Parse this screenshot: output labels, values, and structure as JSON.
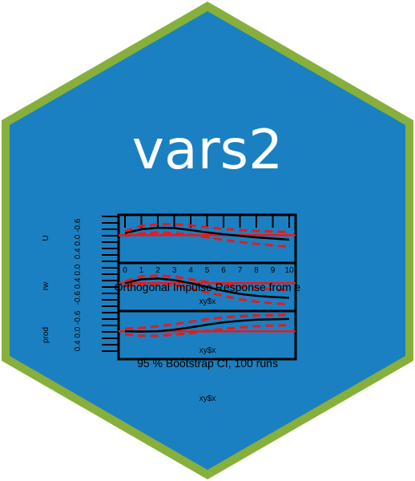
{
  "logo": {
    "title": "vars2",
    "border_color": "#86b03b",
    "fill_color": "#1a80c2",
    "title_color": "#ffffff"
  },
  "plot": {
    "main_title": "Orthogonal Impulse Response from e",
    "subtitle": "95 % Bootstrap CI, 100 runs",
    "xlabel": "xy$x",
    "x_ticks": [
      "0",
      "1",
      "2",
      "3",
      "4",
      "5",
      "6",
      "7",
      "8",
      "9",
      "10"
    ],
    "panels": [
      {
        "ylabel": "U",
        "ytick_text": "0.4 0.0 -0.6"
      },
      {
        "ylabel": "rw",
        "ytick_text": "-0.6 0.4 0.0"
      },
      {
        "ylabel": "prod",
        "ytick_text": "0.4 0.0 -0.6"
      }
    ],
    "line_color": "#000000",
    "ci_color": "#e8191c",
    "zero_color": "#e8191c"
  },
  "chart_data": {
    "type": "line",
    "title": "Orthogonal Impulse Response from e",
    "subtitle": "95 % Bootstrap CI, 100 runs",
    "xlabel": "xy$x",
    "x": [
      0,
      1,
      2,
      3,
      4,
      5,
      6,
      7,
      8,
      9,
      10
    ],
    "panels": [
      {
        "ylabel": "U",
        "ylim": [
          -0.6,
          0.4
        ],
        "series": [
          {
            "values": [
              0.05,
              0.15,
              0.19,
              0.18,
              0.13,
              0.07,
              0.02,
              -0.02,
              -0.06,
              -0.09,
              -0.12
            ]
          },
          {
            "values": [
              0.1,
              0.24,
              0.28,
              0.28,
              0.25,
              0.2,
              0.16,
              0.13,
              0.11,
              0.09,
              0.08
            ]
          },
          {
            "values": [
              -0.02,
              0.04,
              0.07,
              0.05,
              0.01,
              -0.06,
              -0.13,
              -0.18,
              -0.23,
              -0.27,
              -0.3
            ]
          }
        ]
      },
      {
        "ylabel": "rw",
        "ylim": [
          -0.6,
          0.4
        ],
        "series": [
          {
            "values": [
              0.0,
              0.1,
              0.12,
              0.08,
              0.0,
              -0.1,
              -0.2,
              -0.28,
              -0.33,
              -0.36,
              -0.38
            ]
          },
          {
            "values": [
              0.05,
              0.18,
              0.2,
              0.17,
              0.1,
              0.03,
              -0.04,
              -0.09,
              -0.13,
              -0.16,
              -0.18
            ]
          },
          {
            "values": [
              -0.08,
              -0.03,
              -0.02,
              -0.06,
              -0.14,
              -0.24,
              -0.33,
              -0.42,
              -0.48,
              -0.52,
              -0.55
            ]
          }
        ]
      },
      {
        "ylabel": "prod",
        "ylim": [
          -0.6,
          0.4
        ],
        "series": [
          {
            "values": [
              0.0,
              -0.01,
              0.0,
              0.04,
              0.1,
              0.17,
              0.23,
              0.27,
              0.3,
              0.31,
              0.32
            ]
          },
          {
            "values": [
              0.07,
              0.09,
              0.13,
              0.18,
              0.25,
              0.31,
              0.36,
              0.39,
              0.41,
              0.42,
              0.43
            ]
          },
          {
            "values": [
              -0.08,
              -0.12,
              -0.12,
              -0.09,
              -0.05,
              0.01,
              0.06,
              0.1,
              0.13,
              0.15,
              0.16
            ]
          }
        ]
      }
    ],
    "legend": "none",
    "grid": false
  }
}
